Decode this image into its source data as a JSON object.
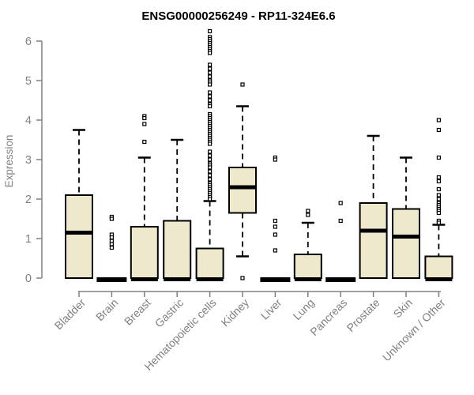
{
  "chart_data": {
    "type": "boxplot",
    "title": "ENSG00000256249 - RP11-324E6.6",
    "ylabel": "Expression",
    "xlabel": "",
    "y_ticks": [
      0,
      1,
      2,
      3,
      4,
      5,
      6
    ],
    "ylim": [
      0,
      6.3
    ],
    "grid": false,
    "legend": "none",
    "axis_color": "#808080",
    "box_fill_color": "#EEE8CD",
    "box_border_color": "#000000",
    "median_color": "#000000",
    "categories": [
      "Bladder",
      "Brain",
      "Breast",
      "Gastric",
      "Hematopoietic cells",
      "Kidney",
      "Liver",
      "Lung",
      "Pancreas",
      "Prostate",
      "Skin",
      "Unknown / Other"
    ],
    "boxes": [
      {
        "label": "Bladder",
        "whisker_low": 0,
        "q1": 0,
        "median": 1.15,
        "q3": 2.1,
        "whisker_high": 3.75,
        "outliers": []
      },
      {
        "label": "Brain",
        "whisker_low": 0,
        "q1": 0,
        "median": 0,
        "q3": 0,
        "whisker_high": 0,
        "outliers": [
          1.55,
          1.5,
          1.1,
          1.03,
          0.94,
          0.86,
          0.77
        ]
      },
      {
        "label": "Breast",
        "whisker_low": 0,
        "q1": 0,
        "median": 0,
        "q3": 1.3,
        "whisker_high": 3.05,
        "outliers": [
          4.1,
          4.05,
          3.9,
          3.45
        ]
      },
      {
        "label": "Gastric",
        "whisker_low": 0,
        "q1": 0,
        "median": 0,
        "q3": 1.45,
        "whisker_high": 3.5,
        "outliers": []
      },
      {
        "label": "Hematopoietic cells",
        "whisker_low": 0,
        "q1": 0,
        "median": 0,
        "q3": 0.75,
        "whisker_high": 1.95,
        "outliers": [
          6.25,
          6.1,
          6.05,
          6.0,
          5.95,
          5.9,
          5.85,
          5.8,
          5.75,
          5.7,
          5.4,
          5.3,
          5.2,
          5.1,
          5.0,
          4.95,
          4.9,
          4.7,
          4.6,
          4.5,
          4.4,
          4.35,
          4.15,
          4.1,
          4.05,
          4.0,
          3.95,
          3.9,
          3.85,
          3.8,
          3.75,
          3.7,
          3.65,
          3.6,
          3.55,
          3.5,
          3.45,
          3.4,
          3.2,
          3.1,
          3.0,
          2.9,
          2.85,
          2.8,
          2.7,
          2.6,
          2.5,
          2.4,
          2.35,
          2.3,
          2.25,
          2.2,
          2.15,
          2.1,
          2.05,
          2.0
        ]
      },
      {
        "label": "Kidney",
        "whisker_low": 0.55,
        "q1": 1.65,
        "median": 2.3,
        "q3": 2.8,
        "whisker_high": 4.35,
        "outliers": [
          4.9,
          0
        ]
      },
      {
        "label": "Liver",
        "whisker_low": 0,
        "q1": 0,
        "median": 0,
        "q3": 0,
        "whisker_high": 0,
        "outliers": [
          3.05,
          3.0,
          1.45,
          1.3,
          1.1,
          0.7
        ]
      },
      {
        "label": "Lung",
        "whisker_low": 0,
        "q1": 0,
        "median": 0,
        "q3": 0.6,
        "whisker_high": 1.4,
        "outliers": [
          1.7,
          1.6
        ]
      },
      {
        "label": "Pancreas",
        "whisker_low": 0,
        "q1": 0,
        "median": 0,
        "q3": 0,
        "whisker_high": 0,
        "outliers": [
          1.9,
          1.45
        ]
      },
      {
        "label": "Prostate",
        "whisker_low": 0,
        "q1": 0,
        "median": 1.2,
        "q3": 1.9,
        "whisker_high": 3.6,
        "outliers": []
      },
      {
        "label": "Skin",
        "whisker_low": 0,
        "q1": 0,
        "median": 1.05,
        "q3": 1.75,
        "whisker_high": 3.05,
        "outliers": []
      },
      {
        "label": "Unknown / Other",
        "whisker_low": 0,
        "q1": 0,
        "median": 0,
        "q3": 0.55,
        "whisker_high": 1.35,
        "outliers": [
          4.0,
          3.75,
          3.05,
          2.55,
          2.45,
          2.25,
          2.1,
          2.0,
          1.9,
          1.85,
          1.8,
          1.75,
          1.7,
          1.65,
          1.45,
          1.4
        ]
      }
    ]
  }
}
